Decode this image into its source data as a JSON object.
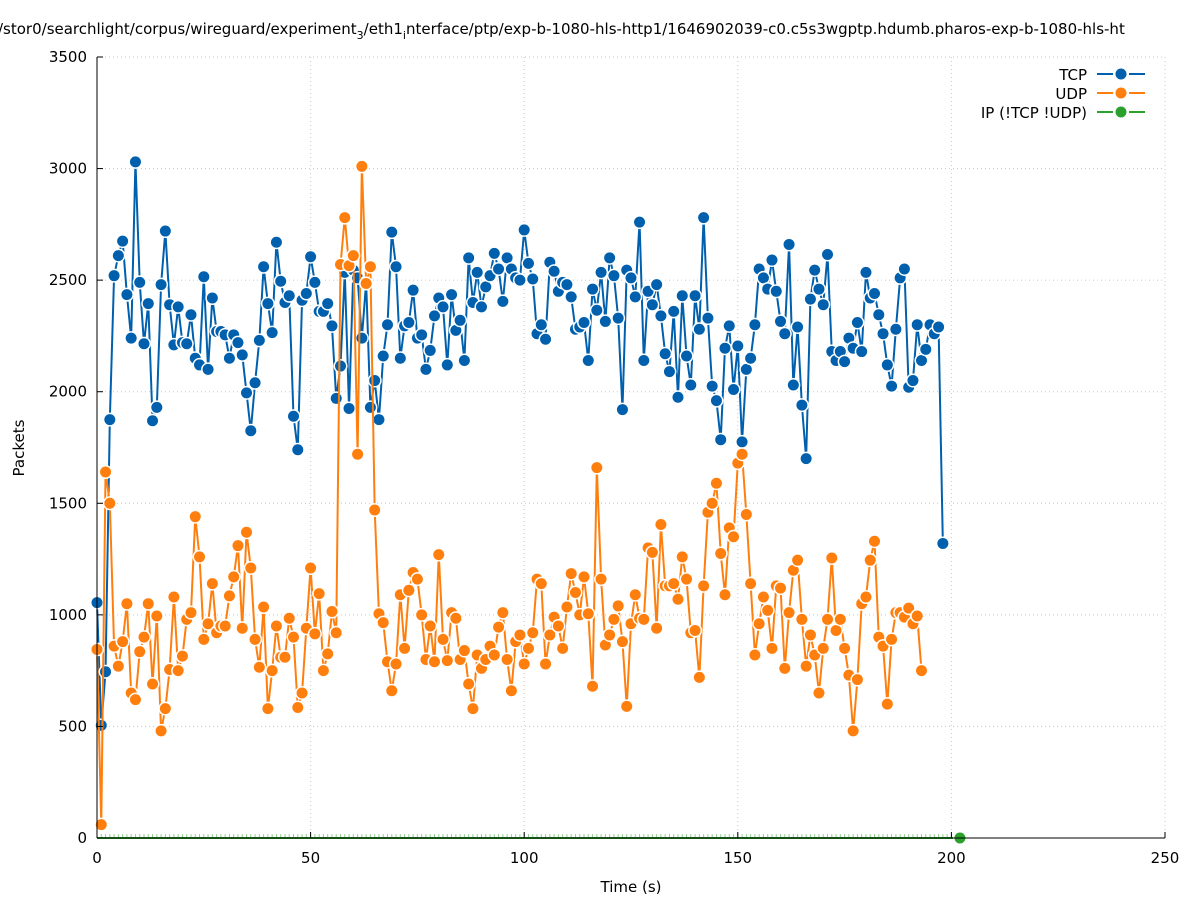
{
  "chart_data": {
    "type": "line",
    "title": "/stor0/searchlight/corpus/wireguard/experiment_3/eth1_interface/ptp/exp-b-1080-hls-http1/1646902039-c0.c5s3wgptp.hdumb.pharos-exp-b-1080-hls-ht",
    "title_parts": {
      "a": "/stor0/searchlight/corpus/wireguard/experiment",
      "sub1": "3",
      "b": "/eth1",
      "sub2": "i",
      "c": "nterface/ptp/exp-b-1080-hls-http1/1646902039-c0.c5s3wgptp.hdumb.pharos-exp-b-1080-hls-ht"
    },
    "xlabel": "Time (s)",
    "ylabel": "Packets",
    "xlim": [
      0,
      250
    ],
    "ylim": [
      0,
      3500
    ],
    "xticks": [
      "0",
      "50",
      "100",
      "150",
      "200",
      "250"
    ],
    "yticks": [
      "0",
      "500",
      "1000",
      "1500",
      "2000",
      "2500",
      "3000",
      "3500"
    ],
    "grid": true,
    "legend_position": "top-right",
    "series": [
      {
        "name": "TCP",
        "color": "#0060ad",
        "x_start": 0,
        "x_step": 1,
        "values": [
          1055,
          505,
          745,
          1875,
          2520,
          2610,
          2675,
          2435,
          2240,
          3030,
          2490,
          2215,
          2395,
          1870,
          1930,
          2480,
          2720,
          2390,
          2210,
          2380,
          2220,
          2215,
          2345,
          2150,
          2120,
          2515,
          2100,
          2420,
          2270,
          2270,
          2255,
          2150,
          2255,
          2220,
          2165,
          1995,
          1825,
          2040,
          2230,
          2560,
          2395,
          2265,
          2670,
          2495,
          2400,
          2430,
          1890,
          1740,
          2410,
          2440,
          2605,
          2490,
          2360,
          2360,
          2395,
          2295,
          1970,
          2115,
          2535,
          1925,
          2545,
          2510,
          2240,
          2490,
          1930,
          2050,
          1875,
          2160,
          2300,
          2715,
          2560,
          2150,
          2295,
          2310,
          2455,
          2240,
          2255,
          2100,
          2185,
          2340,
          2420,
          2380,
          2120,
          2435,
          2275,
          2320,
          2140,
          2600,
          2400,
          2535,
          2380,
          2470,
          2520,
          2620,
          2550,
          2405,
          2600,
          2550,
          2510,
          2500,
          2725,
          2575,
          2505,
          2260,
          2300,
          2235,
          2580,
          2540,
          2450,
          2490,
          2480,
          2425,
          2280,
          2290,
          2310,
          2140,
          2460,
          2365,
          2535,
          2315,
          2600,
          2520,
          2330,
          1920,
          2545,
          2510,
          2425,
          2760,
          2140,
          2450,
          2390,
          2480,
          2340,
          2170,
          2090,
          2360,
          1975,
          2430,
          2160,
          2030,
          2430,
          2280,
          2780,
          2330,
          2025,
          1960,
          1785,
          2195,
          2295,
          2010,
          2205,
          1775,
          2100,
          2150,
          2300,
          2550,
          2510,
          2460,
          2590,
          2450,
          2315,
          2260,
          2660,
          2030,
          2290,
          1940,
          1700,
          2415,
          2545,
          2460,
          2390,
          2615,
          2180,
          2140,
          2180,
          2135,
          2240,
          2195,
          2310,
          2180,
          2535,
          2420,
          2440,
          2345,
          2260,
          2120,
          2025,
          2280,
          2510,
          2550,
          2020,
          2050,
          2300,
          2140,
          2190,
          2300,
          2260,
          2290,
          1320
        ]
      },
      {
        "name": "UDP",
        "color": "#ff7f0e",
        "x_start": 0,
        "x_step": 1,
        "values": [
          845,
          60,
          1640,
          1500,
          860,
          770,
          880,
          1050,
          650,
          620,
          835,
          900,
          1050,
          690,
          995,
          480,
          580,
          755,
          1080,
          750,
          815,
          980,
          1010,
          1440,
          1260,
          890,
          960,
          1140,
          920,
          950,
          950,
          1085,
          1170,
          1310,
          940,
          1370,
          1210,
          890,
          765,
          1035,
          580,
          750,
          950,
          810,
          810,
          985,
          900,
          585,
          650,
          940,
          1210,
          915,
          1095,
          750,
          825,
          1015,
          920,
          2570,
          2780,
          2565,
          2610,
          1720,
          3010,
          2485,
          2560,
          1470,
          1005,
          965,
          790,
          660,
          780,
          1090,
          850,
          1110,
          1190,
          1160,
          1000,
          800,
          950,
          790,
          1270,
          890,
          795,
          1010,
          985,
          800,
          840,
          690,
          580,
          820,
          760,
          800,
          860,
          820,
          945,
          1010,
          800,
          660,
          880,
          910,
          780,
          850,
          920,
          1160,
          1140,
          780,
          910,
          990,
          950,
          850,
          1035,
          1185,
          1100,
          1000,
          1170,
          1005,
          680,
          1660,
          1160,
          865,
          910,
          980,
          1040,
          880,
          590,
          960,
          1090,
          985,
          980,
          1300,
          1280,
          940,
          1405,
          1130,
          1130,
          1140,
          1070,
          1260,
          1160,
          920,
          930,
          720,
          1130,
          1460,
          1500,
          1590,
          1275,
          1090,
          1390,
          1350,
          1680,
          1720,
          1450,
          1140,
          820,
          960,
          1080,
          1020,
          850,
          1130,
          1120,
          760,
          1010,
          1200,
          1245,
          980,
          770,
          910,
          820,
          650,
          850,
          980,
          1255,
          930,
          980,
          850,
          730,
          480,
          710,
          1050,
          1080,
          1245,
          1330,
          900,
          860,
          600,
          890,
          1010,
          1010,
          990,
          1030,
          960,
          995,
          750
        ]
      },
      {
        "name": "IP (!TCP  !UDP)",
        "color": "#2ca02c",
        "x_start": 0,
        "x_step": 1,
        "values": [
          0,
          0,
          0,
          0,
          0,
          0,
          0,
          0,
          0,
          0,
          0,
          0,
          0,
          0,
          0,
          0,
          0,
          0,
          0,
          0,
          0,
          0,
          0,
          0,
          0,
          0,
          0,
          0,
          0,
          0,
          0,
          0,
          0,
          0,
          0,
          0,
          0,
          0,
          0,
          0,
          0,
          0,
          0,
          0,
          0,
          0,
          0,
          0,
          0,
          0,
          0,
          0,
          0,
          0,
          0,
          0,
          0,
          0,
          0,
          0,
          0,
          0,
          0,
          0,
          0,
          0,
          0,
          0,
          0,
          0,
          0,
          0,
          0,
          0,
          0,
          0,
          0,
          0,
          0,
          0,
          0,
          0,
          0,
          0,
          0,
          0,
          0,
          0,
          0,
          0,
          0,
          0,
          0,
          0,
          0,
          0,
          0,
          0,
          0,
          0,
          0,
          0,
          0,
          0,
          0,
          0,
          0,
          0,
          0,
          0,
          0,
          0,
          0,
          0,
          0,
          0,
          0,
          0,
          0,
          0,
          0,
          0,
          0,
          0,
          0,
          0,
          0,
          0,
          0,
          0,
          0,
          0,
          0,
          0,
          0,
          0,
          0,
          0,
          0,
          0,
          0,
          0,
          0,
          0,
          0,
          0,
          0,
          0,
          0,
          0,
          0,
          0,
          0,
          0,
          0,
          0,
          0,
          0,
          0,
          0,
          0,
          0,
          0,
          0,
          0,
          0,
          0,
          0,
          0,
          0,
          0,
          0,
          0,
          0,
          0,
          0,
          0,
          0,
          0,
          0,
          0,
          0,
          0,
          0,
          0,
          0,
          0,
          0,
          0,
          0,
          0,
          0,
          0,
          0,
          0,
          0,
          0,
          0,
          0,
          0,
          0,
          0,
          0
        ]
      }
    ]
  }
}
